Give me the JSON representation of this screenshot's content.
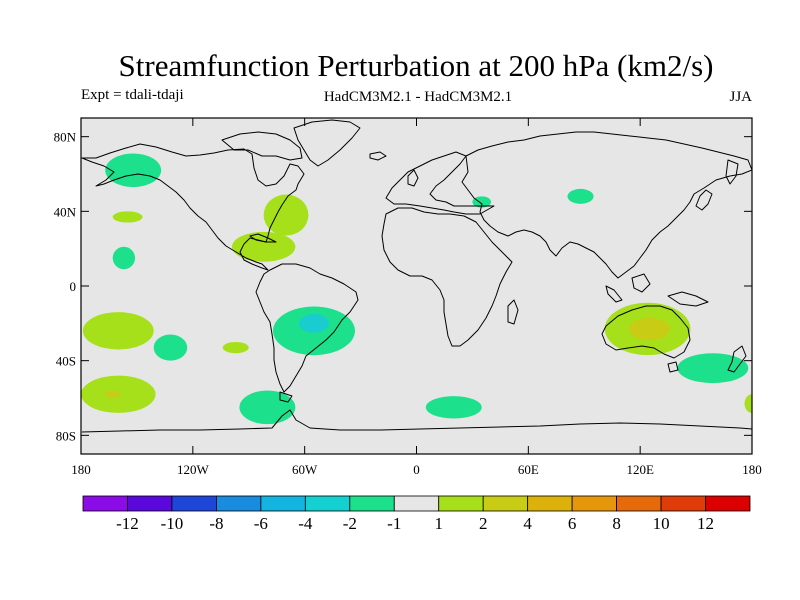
{
  "title": "Streamfunction Perturbation at 200 hPa (km2/s)",
  "subtitle_left": "Expt = tdali-tdaji",
  "subtitle_center": "HadCM3M2.1 - HadCM3M2.1",
  "subtitle_right": "JJA",
  "map": {
    "lon_range": [
      -180,
      180
    ],
    "lat_range": [
      -90,
      90
    ],
    "lat_ticks": [
      {
        "value": 80,
        "label": "80N"
      },
      {
        "value": 40,
        "label": "40N"
      },
      {
        "value": 0,
        "label": "0"
      },
      {
        "value": -40,
        "label": "40S"
      },
      {
        "value": -80,
        "label": "80S"
      }
    ],
    "lon_ticks": [
      {
        "value": -180,
        "label": "180"
      },
      {
        "value": -120,
        "label": "120W"
      },
      {
        "value": -60,
        "label": "60W"
      },
      {
        "value": 0,
        "label": "0"
      },
      {
        "value": 60,
        "label": "60E"
      },
      {
        "value": 120,
        "label": "120E"
      },
      {
        "value": 180,
        "label": "180"
      }
    ],
    "background_color": "#e6e6e6",
    "anomalies": [
      {
        "name": "north-pacific-negative",
        "lon": -152,
        "lat": 62,
        "rlon": 15,
        "rlat": 9,
        "color": "#1ce08c"
      },
      {
        "name": "pacific-positive-30n",
        "lon": -155,
        "lat": 37,
        "rlon": 8,
        "rlat": 3,
        "color": "#a6e01a"
      },
      {
        "name": "pacific-negative-15n",
        "lon": -157,
        "lat": 15,
        "rlon": 6,
        "rlat": 6,
        "color": "#1ce08c"
      },
      {
        "name": "pacific-positive-southeast",
        "lon": -160,
        "lat": -24,
        "rlon": 19,
        "rlat": 10,
        "color": "#a6e01a"
      },
      {
        "name": "pacific-negative-south",
        "lon": -132,
        "lat": -33,
        "rlon": 9,
        "rlat": 7,
        "color": "#1ce08c"
      },
      {
        "name": "south-pacific-positive",
        "lon": -160,
        "lat": -58,
        "rlon": 20,
        "rlat": 10,
        "color": "#a6e01a"
      },
      {
        "name": "south-pacific-core",
        "lon": -163,
        "lat": -58,
        "rlon": 4,
        "rlat": 2,
        "color": "#c8cc14"
      },
      {
        "name": "chile-positive",
        "lon": -97,
        "lat": -33,
        "rlon": 7,
        "rlat": 3,
        "color": "#a6e01a"
      },
      {
        "name": "drake-negative",
        "lon": -80,
        "lat": -65,
        "rlon": 15,
        "rlat": 9,
        "color": "#1ce08c"
      },
      {
        "name": "north-atlantic-positive",
        "lon": -70,
        "lat": 38,
        "rlon": 12,
        "rlat": 11,
        "color": "#a6e01a"
      },
      {
        "name": "caribbean-positive",
        "lon": -82,
        "lat": 21,
        "rlon": 17,
        "rlat": 8,
        "color": "#a6e01a"
      },
      {
        "name": "south-atlantic-negative",
        "lon": -55,
        "lat": -24,
        "rlon": 22,
        "rlat": 13,
        "color": "#1ce08c"
      },
      {
        "name": "south-atlantic-core",
        "lon": -55,
        "lat": -20,
        "rlon": 8,
        "rlat": 5,
        "color": "#18ccd0"
      },
      {
        "name": "southern-ocean-negative",
        "lon": 20,
        "lat": -65,
        "rlon": 15,
        "rlat": 6,
        "color": "#1ce08c"
      },
      {
        "name": "mediterranean-negative",
        "lon": 35,
        "lat": 45,
        "rlon": 5,
        "rlat": 3,
        "color": "#1ce08c"
      },
      {
        "name": "central-asia-negative",
        "lon": 88,
        "lat": 48,
        "rlon": 7,
        "rlat": 4,
        "color": "#1ce08c"
      },
      {
        "name": "australia-positive",
        "lon": 124,
        "lat": -23,
        "rlon": 23,
        "rlat": 14,
        "color": "#a6e01a"
      },
      {
        "name": "australia-core",
        "lon": 125,
        "lat": -23,
        "rlon": 11,
        "rlat": 6,
        "color": "#c8cc14"
      },
      {
        "name": "tasman-negative",
        "lon": 159,
        "lat": -44,
        "rlon": 19,
        "rlat": 8,
        "color": "#1ce08c"
      },
      {
        "name": "dateline-positive",
        "lon": 180,
        "lat": -63,
        "rlon": 4,
        "rlat": 5,
        "color": "#a6e01a"
      }
    ]
  },
  "colorbar": {
    "colors": [
      "#8c0ce8",
      "#5a08dc",
      "#1e46d8",
      "#1a8ce0",
      "#14b4e0",
      "#14d0d0",
      "#1ce08c",
      "#e6e6e6",
      "#a6e01a",
      "#c8cc14",
      "#dcb20a",
      "#e6960a",
      "#e66a0a",
      "#e03c0a",
      "#dc0000"
    ],
    "labels": [
      "-12",
      "-10",
      "-8",
      "-6",
      "-4",
      "-2",
      "-1",
      "1",
      "2",
      "4",
      "6",
      "8",
      "10",
      "12"
    ]
  }
}
